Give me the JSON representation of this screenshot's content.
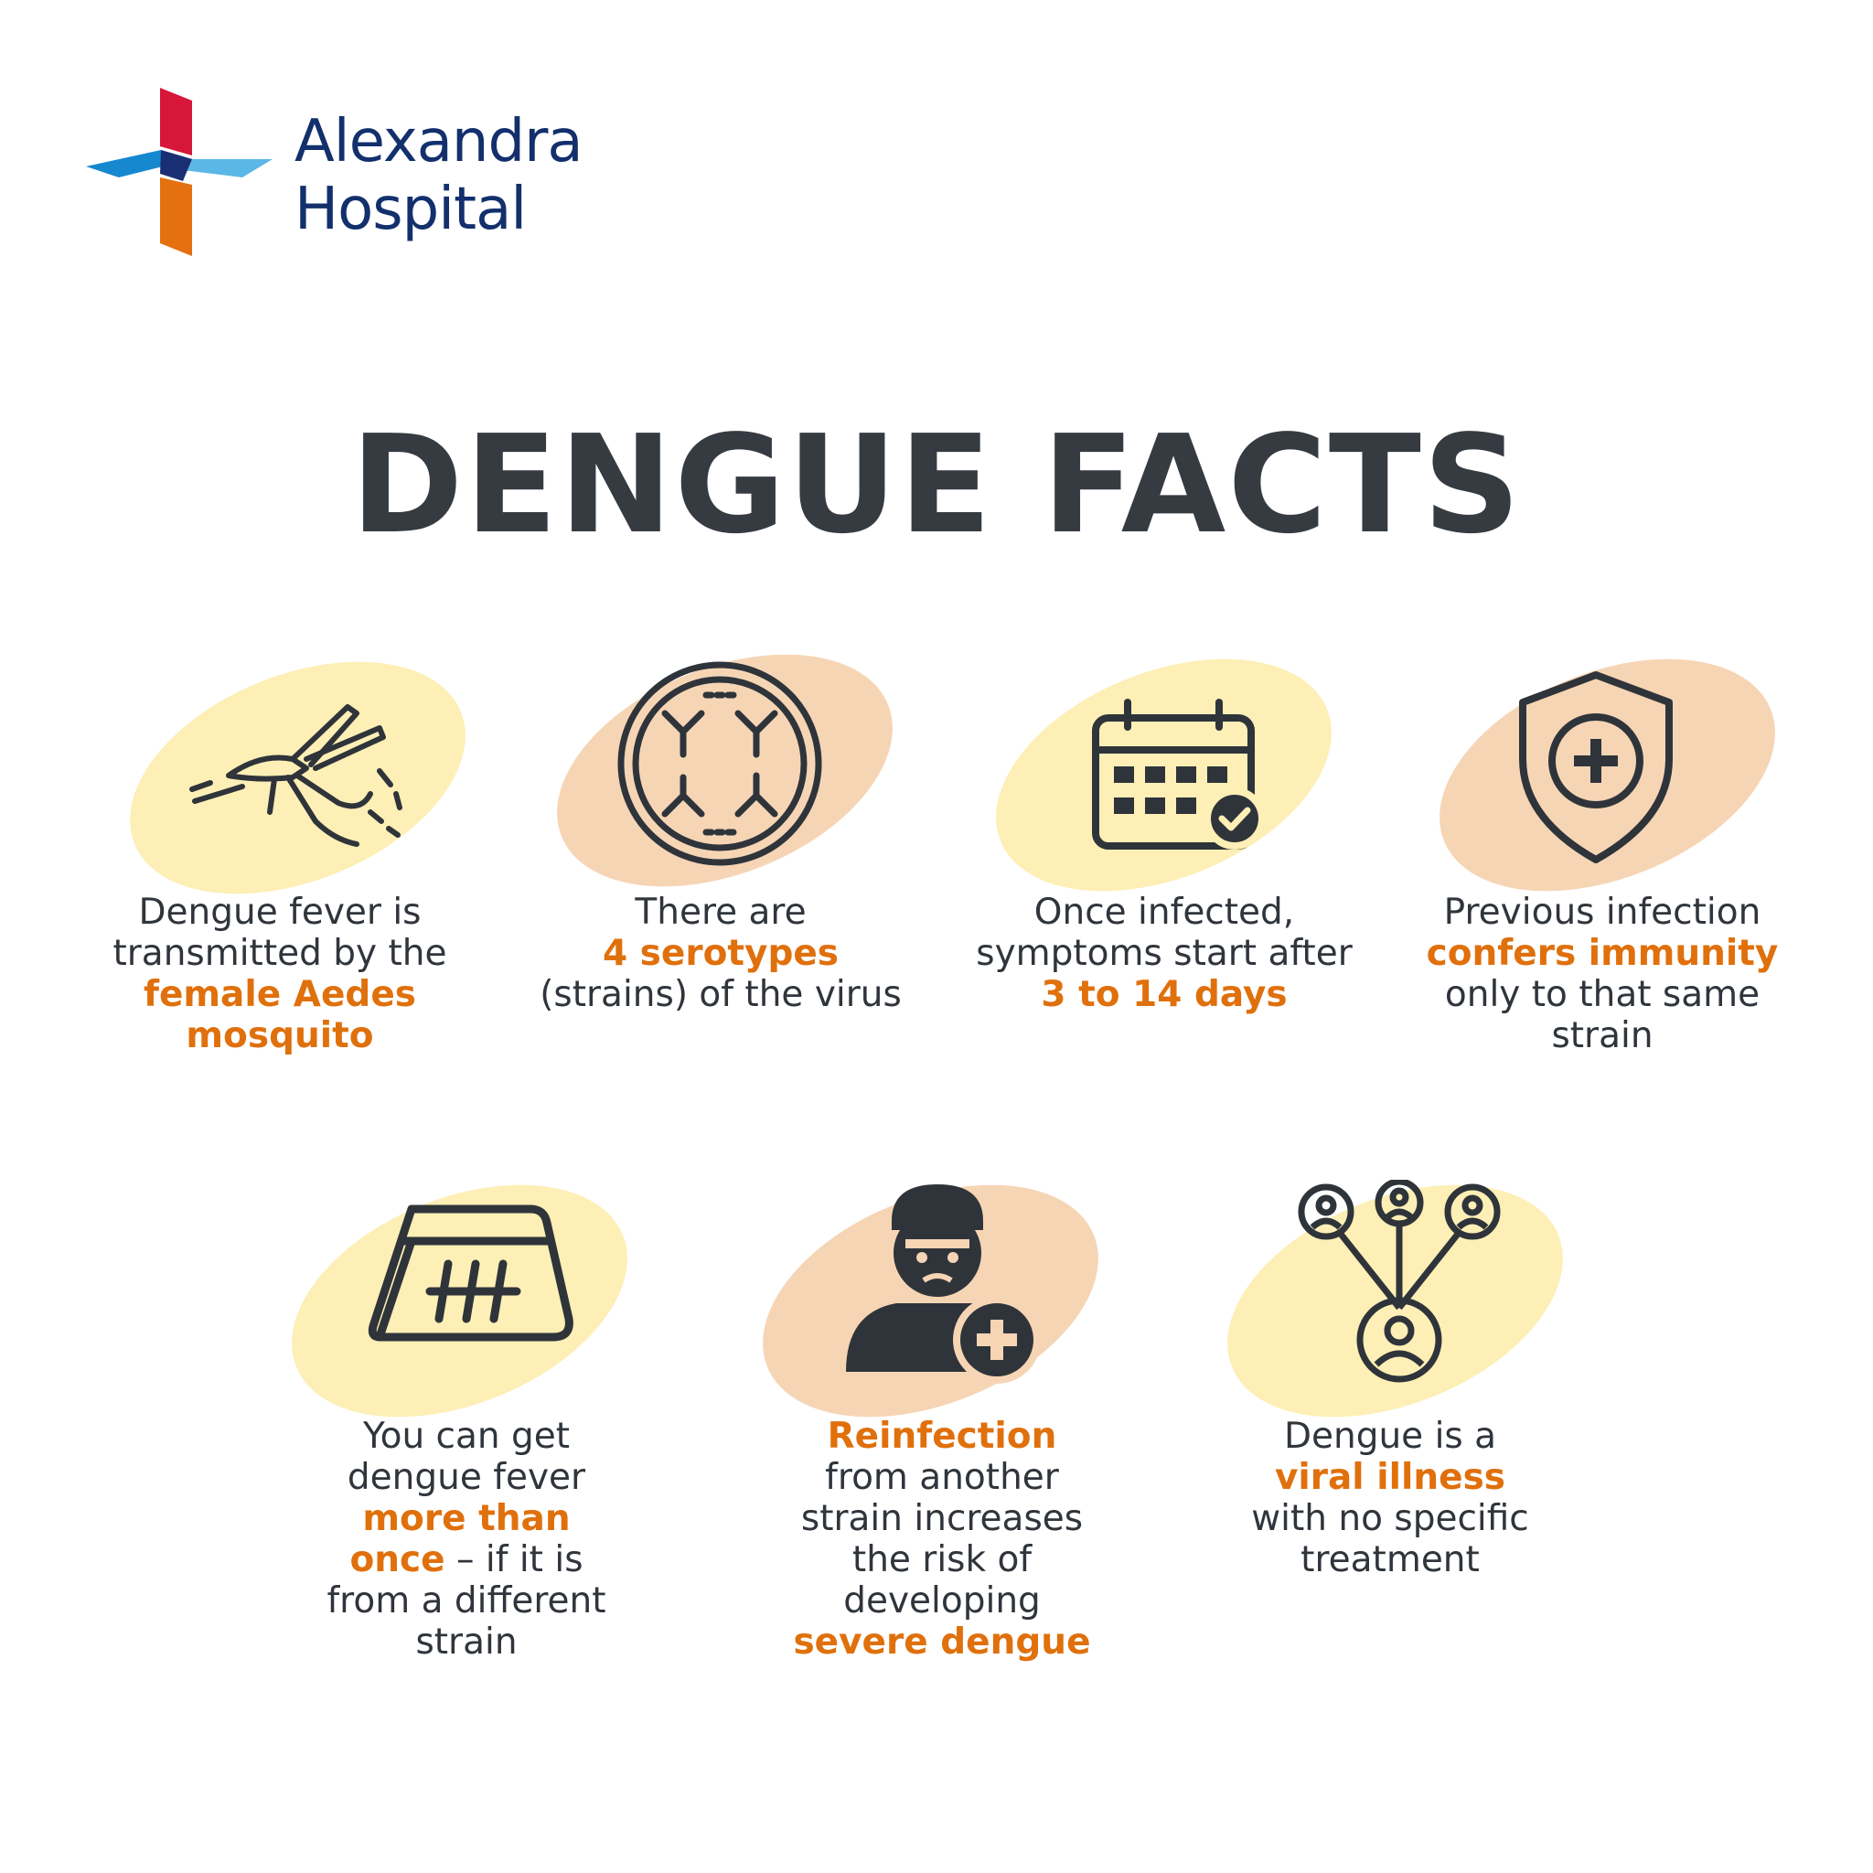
{
  "brand": {
    "line1": "Alexandra",
    "line2": "Hospital",
    "colors": {
      "navy": "#13306d",
      "red": "#d6173a",
      "blue": "#1688cf",
      "orange": "#e4700f"
    }
  },
  "title": "DENGUE FACTS",
  "colors": {
    "yellow_blob": "#fdefb5",
    "peach_blob": "#f6d5b5",
    "highlight": "#e0700c",
    "text": "#30353c"
  },
  "facts": [
    {
      "icon": "mosquito-icon",
      "pre": "Dengue fever is transmitted by the ",
      "hl": "female Aedes mosquito",
      "post": ""
    },
    {
      "icon": "virus-serotypes-icon",
      "pre": "There are ",
      "hl": "4 serotypes",
      "post": " (strains) of the virus"
    },
    {
      "icon": "calendar-check-icon",
      "pre": "Once infected, symptoms start after ",
      "hl": "3 to 14 days",
      "post": ""
    },
    {
      "icon": "shield-plus-icon",
      "pre": "Previous infection ",
      "hl": "confers immunity",
      "post": " only to that same strain"
    },
    {
      "icon": "tally-calendar-icon",
      "pre": "You can get dengue fever ",
      "hl": "more than once",
      "post": " – if it is from a different strain"
    },
    {
      "icon": "sick-person-icon",
      "pre": "",
      "hl": "Reinfection",
      "post": " from another strain increases the risk of developing ",
      "hl2": "severe dengue"
    },
    {
      "icon": "network-people-icon",
      "pre": "Dengue is a ",
      "hl": "viral illness",
      "post": " with no specific treatment"
    }
  ]
}
